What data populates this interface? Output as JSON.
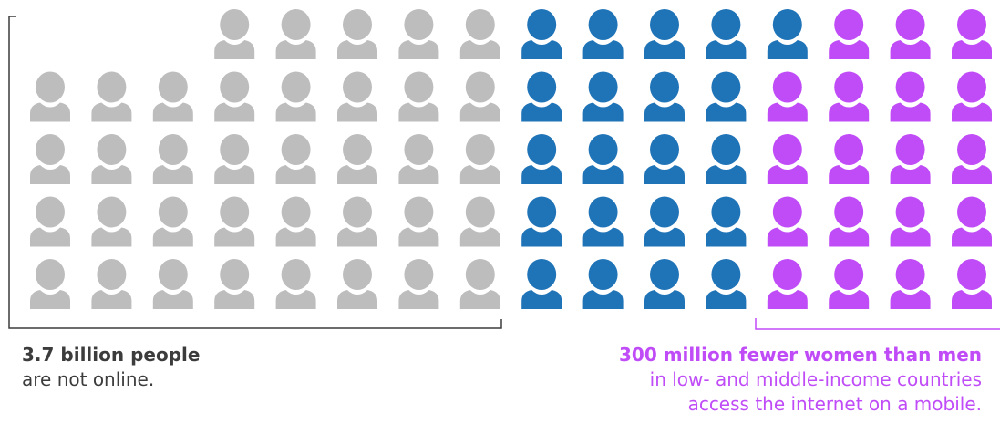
{
  "chart_data": {
    "type": "pictogram",
    "unit": "person-icon",
    "layout": {
      "rows": 5,
      "columns": 16,
      "first_row_starts_at_column": 4,
      "total_icons": 77
    },
    "colors": {
      "offline": "#bdbdbd",
      "online_men": "#1f73b7",
      "gender_gap": "#c04cf7"
    },
    "rows": [
      {
        "offline": 5,
        "online": 5,
        "gap": 3
      },
      {
        "offline": 8,
        "online": 4.25,
        "gap": 3.75
      },
      {
        "offline": 8,
        "online": 4,
        "gap": 4
      },
      {
        "offline": 8,
        "online": 4,
        "gap": 4
      },
      {
        "offline": 8,
        "online": 4,
        "gap": 4
      }
    ],
    "icon_counts": {
      "offline": 37,
      "online": 21.25,
      "gap": 18.75
    }
  },
  "captions": {
    "offline_bold": "3.7 billion people",
    "offline_text": "are not online.",
    "gap_bold": "300 million fewer women than men",
    "gap_text_line1": "in low- and middle-income countries",
    "gap_text_line2": "access the internet on a mobile."
  }
}
